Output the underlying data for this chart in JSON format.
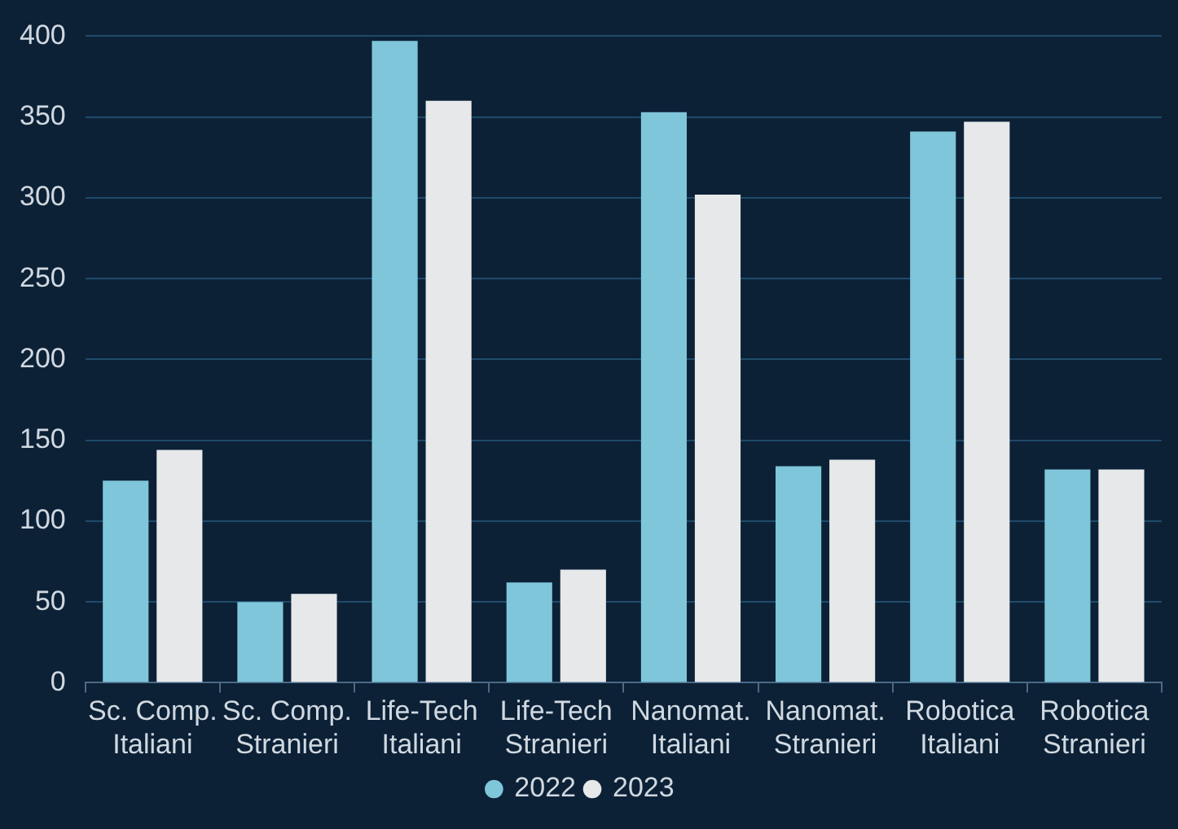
{
  "chart_data": {
    "type": "bar",
    "categories": [
      "Sc. Comp. Italiani",
      "Sc. Comp. Stranieri",
      "Life-Tech Italiani",
      "Life-Tech Stranieri",
      "Nanomat. Italiani",
      "Nanomat. Stranieri",
      "Robotica Italiani",
      "Robotica Stranieri"
    ],
    "series": [
      {
        "name": "2022",
        "color": "#7fc6da",
        "values": [
          125,
          50,
          397,
          62,
          353,
          134,
          341,
          132
        ]
      },
      {
        "name": "2023",
        "color": "#e6e8ea",
        "values": [
          144,
          55,
          360,
          70,
          302,
          138,
          347,
          132
        ]
      }
    ],
    "ylim": [
      0,
      400
    ],
    "yticks": [
      0,
      50,
      100,
      150,
      200,
      250,
      300,
      350,
      400
    ],
    "grid": "y",
    "legend": "bottom"
  }
}
